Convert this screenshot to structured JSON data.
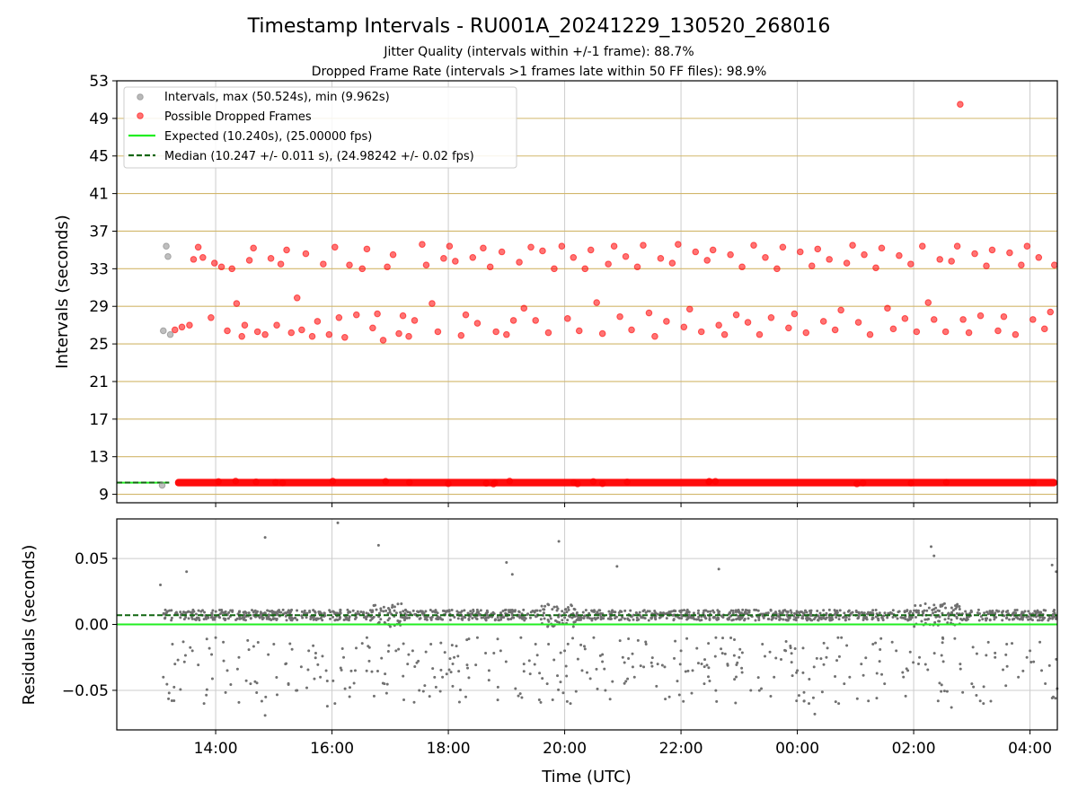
{
  "title": "Timestamp Intervals - RU001A_20241229_130520_268016",
  "subtitle_lines": [
    "Jitter Quality (intervals within +/-1 frame): 88.7%",
    "Dropped Frame Rate (intervals >1 frames late within 50 FF files): 98.9%"
  ],
  "colors": {
    "intervals": "#808080",
    "dropped": "#ff0000",
    "expected": "#22ee22",
    "median": "#116611",
    "hgrid": "#d2b76b",
    "vgrid": "#cccccc",
    "residuals": "#707070"
  },
  "legend": {
    "placement": "upper-left",
    "entries": [
      "Intervals, max (50.524s), min (9.962s)",
      "Possible Dropped Frames",
      "Expected (10.240s), (25.00000 fps)",
      "Median (10.247 +/- 0.011 s), (24.98242 +/- 0.02 fps)"
    ]
  },
  "chart_data": [
    {
      "type": "scatter",
      "name": "intervals",
      "xlabel": "",
      "ylabel": "Intervals (seconds)",
      "x_unit": "hours since 00:00 UTC on first day (ticks wrap past 24:00)",
      "xlim": [
        12.3,
        28.47
      ],
      "ylim": [
        8.1,
        53
      ],
      "yticks": [
        "9",
        "13",
        "17",
        "21",
        "25",
        "29",
        "33",
        "37",
        "41",
        "45",
        "49",
        "53"
      ],
      "xticks": [
        "14:00",
        "16:00",
        "18:00",
        "20:00",
        "22:00",
        "00:00",
        "02:00",
        "04:00"
      ],
      "grid": "horizontal gold + vertical gray",
      "series": [
        {
          "name": "Intervals, max (50.524s), min (9.962s)",
          "points": [
            [
              13.1,
              26.4
            ],
            [
              13.15,
              35.4
            ],
            [
              13.18,
              34.3
            ],
            [
              13.22,
              26.0
            ],
            [
              13.08,
              9.96
            ]
          ]
        },
        {
          "name": "Possible Dropped Frames",
          "band_value": 10.24,
          "band_range": [
            13.3,
            28.47
          ],
          "points": [
            [
              13.3,
              26.5
            ],
            [
              13.42,
              26.8
            ],
            [
              13.55,
              27.0
            ],
            [
              13.62,
              34.0
            ],
            [
              13.7,
              35.3
            ],
            [
              13.78,
              34.2
            ],
            [
              13.92,
              27.8
            ],
            [
              13.98,
              33.6
            ],
            [
              14.1,
              33.2
            ],
            [
              14.2,
              26.4
            ],
            [
              14.28,
              33.0
            ],
            [
              14.36,
              29.3
            ],
            [
              14.45,
              25.8
            ],
            [
              14.5,
              27.0
            ],
            [
              14.58,
              33.9
            ],
            [
              14.65,
              35.2
            ],
            [
              14.72,
              26.3
            ],
            [
              14.85,
              26.0
            ],
            [
              14.95,
              34.1
            ],
            [
              15.05,
              27.0
            ],
            [
              15.12,
              33.5
            ],
            [
              15.22,
              35.0
            ],
            [
              15.3,
              26.2
            ],
            [
              15.4,
              29.9
            ],
            [
              15.48,
              26.5
            ],
            [
              15.55,
              34.6
            ],
            [
              15.66,
              25.8
            ],
            [
              15.75,
              27.4
            ],
            [
              15.85,
              33.5
            ],
            [
              15.95,
              26.0
            ],
            [
              16.05,
              35.3
            ],
            [
              16.12,
              27.8
            ],
            [
              16.22,
              25.7
            ],
            [
              16.3,
              33.4
            ],
            [
              16.42,
              28.1
            ],
            [
              16.52,
              33.0
            ],
            [
              16.6,
              35.1
            ],
            [
              16.7,
              26.7
            ],
            [
              16.78,
              28.2
            ],
            [
              16.88,
              25.4
            ],
            [
              16.95,
              33.2
            ],
            [
              17.05,
              34.5
            ],
            [
              17.15,
              26.1
            ],
            [
              17.22,
              28.0
            ],
            [
              17.32,
              25.8
            ],
            [
              17.42,
              27.5
            ],
            [
              17.55,
              35.6
            ],
            [
              17.62,
              33.4
            ],
            [
              17.72,
              29.3
            ],
            [
              17.82,
              26.3
            ],
            [
              17.92,
              34.1
            ],
            [
              18.02,
              35.4
            ],
            [
              18.12,
              33.8
            ],
            [
              18.22,
              25.9
            ],
            [
              18.3,
              28.1
            ],
            [
              18.42,
              34.2
            ],
            [
              18.5,
              27.2
            ],
            [
              18.6,
              35.2
            ],
            [
              18.72,
              33.2
            ],
            [
              18.82,
              26.3
            ],
            [
              18.92,
              34.8
            ],
            [
              19.0,
              26.0
            ],
            [
              19.12,
              27.5
            ],
            [
              19.22,
              33.7
            ],
            [
              19.3,
              28.8
            ],
            [
              19.42,
              35.3
            ],
            [
              19.5,
              27.5
            ],
            [
              19.62,
              34.9
            ],
            [
              19.72,
              26.2
            ],
            [
              19.82,
              33.0
            ],
            [
              19.95,
              35.4
            ],
            [
              20.05,
              27.7
            ],
            [
              20.15,
              34.2
            ],
            [
              20.25,
              26.4
            ],
            [
              20.35,
              33.0
            ],
            [
              20.45,
              35.0
            ],
            [
              20.55,
              29.4
            ],
            [
              20.65,
              26.1
            ],
            [
              20.75,
              33.5
            ],
            [
              20.85,
              35.4
            ],
            [
              20.95,
              27.9
            ],
            [
              21.05,
              34.3
            ],
            [
              21.15,
              26.5
            ],
            [
              21.25,
              33.2
            ],
            [
              21.35,
              35.5
            ],
            [
              21.45,
              28.3
            ],
            [
              21.55,
              25.8
            ],
            [
              21.65,
              34.1
            ],
            [
              21.75,
              27.4
            ],
            [
              21.85,
              33.6
            ],
            [
              21.95,
              35.6
            ],
            [
              22.05,
              26.8
            ],
            [
              22.15,
              28.7
            ],
            [
              22.25,
              34.8
            ],
            [
              22.35,
              26.3
            ],
            [
              22.45,
              33.9
            ],
            [
              22.55,
              35.0
            ],
            [
              22.65,
              27.0
            ],
            [
              22.75,
              26.0
            ],
            [
              22.85,
              34.5
            ],
            [
              22.95,
              28.1
            ],
            [
              23.05,
              33.2
            ],
            [
              23.15,
              27.3
            ],
            [
              23.25,
              35.5
            ],
            [
              23.35,
              26.0
            ],
            [
              23.45,
              34.2
            ],
            [
              23.55,
              27.8
            ],
            [
              23.65,
              33.0
            ],
            [
              23.75,
              35.3
            ],
            [
              23.85,
              26.7
            ],
            [
              23.95,
              28.2
            ],
            [
              24.05,
              34.8
            ],
            [
              24.15,
              26.2
            ],
            [
              24.25,
              33.3
            ],
            [
              24.35,
              35.1
            ],
            [
              24.45,
              27.4
            ],
            [
              24.55,
              34.0
            ],
            [
              24.65,
              26.5
            ],
            [
              24.75,
              28.6
            ],
            [
              24.85,
              33.6
            ],
            [
              24.95,
              35.5
            ],
            [
              25.05,
              27.3
            ],
            [
              25.15,
              34.5
            ],
            [
              25.25,
              26.0
            ],
            [
              25.35,
              33.1
            ],
            [
              25.45,
              35.2
            ],
            [
              25.55,
              28.8
            ],
            [
              25.65,
              26.6
            ],
            [
              25.75,
              34.4
            ],
            [
              25.85,
              27.7
            ],
            [
              25.95,
              33.5
            ],
            [
              26.05,
              26.3
            ],
            [
              26.15,
              35.4
            ],
            [
              26.25,
              29.4
            ],
            [
              26.35,
              27.6
            ],
            [
              26.45,
              34.0
            ],
            [
              26.55,
              26.3
            ],
            [
              26.65,
              33.8
            ],
            [
              26.75,
              35.4
            ],
            [
              26.8,
              50.5
            ],
            [
              26.85,
              27.6
            ],
            [
              26.95,
              26.2
            ],
            [
              27.05,
              34.6
            ],
            [
              27.15,
              28.0
            ],
            [
              27.25,
              33.3
            ],
            [
              27.35,
              35.0
            ],
            [
              27.45,
              26.4
            ],
            [
              27.55,
              27.9
            ],
            [
              27.65,
              34.7
            ],
            [
              27.75,
              26.0
            ],
            [
              27.85,
              33.4
            ],
            [
              27.95,
              35.4
            ],
            [
              28.05,
              27.6
            ],
            [
              28.15,
              34.2
            ],
            [
              28.25,
              26.6
            ],
            [
              28.35,
              28.4
            ],
            [
              28.42,
              33.4
            ]
          ]
        },
        {
          "name": "Expected (10.240s), (25.00000 fps)",
          "values": [
            10.24
          ]
        },
        {
          "name": "Median (10.247 +/- 0.011 s), (24.98242 +/- 0.02 fps)",
          "values": [
            10.247
          ]
        }
      ]
    },
    {
      "type": "scatter",
      "name": "residuals",
      "xlabel": "Time (UTC)",
      "ylabel": "Residuals (seconds)",
      "x_unit": "hours since 00:00 UTC on first day (ticks wrap past 24:00)",
      "xlim": [
        12.3,
        28.47
      ],
      "ylim": [
        -0.08,
        0.08
      ],
      "yticks": [
        "0.05",
        "0.00",
        "−0.05"
      ],
      "xticks": [
        "14:00",
        "16:00",
        "18:00",
        "20:00",
        "22:00",
        "00:00",
        "02:00",
        "04:00"
      ],
      "grid": "both",
      "reference_lines": {
        "expected": 0.0,
        "median": 0.007
      },
      "band": {
        "center": 0.007,
        "spread": 0.004,
        "x_range": [
          13.1,
          28.47
        ]
      },
      "points": [
        [
          13.05,
          0.03
        ],
        [
          13.1,
          -0.04
        ],
        [
          13.2,
          -0.052
        ],
        [
          13.3,
          -0.03
        ],
        [
          13.5,
          0.04
        ],
        [
          13.6,
          -0.02
        ],
        [
          13.8,
          -0.06
        ],
        [
          14.0,
          -0.01
        ],
        [
          14.2,
          -0.035
        ],
        [
          14.4,
          -0.025
        ],
        [
          14.6,
          -0.045
        ],
        [
          14.85,
          0.066
        ],
        [
          14.85,
          -0.069
        ],
        [
          15.0,
          -0.015
        ],
        [
          15.2,
          -0.03
        ],
        [
          15.4,
          -0.05
        ],
        [
          15.6,
          -0.02
        ],
        [
          15.8,
          -0.04
        ],
        [
          15.92,
          -0.062
        ],
        [
          16.05,
          -0.06
        ],
        [
          16.1,
          0.077
        ],
        [
          16.2,
          -0.025
        ],
        [
          16.4,
          -0.035
        ],
        [
          16.6,
          -0.01
        ],
        [
          16.8,
          0.06
        ],
        [
          16.9,
          -0.045
        ],
        [
          17.1,
          -0.02
        ],
        [
          17.3,
          -0.03
        ],
        [
          17.5,
          -0.05
        ],
        [
          17.7,
          -0.015
        ],
        [
          17.9,
          -0.04
        ],
        [
          18.1,
          -0.025
        ],
        [
          18.3,
          -0.055
        ],
        [
          18.5,
          -0.01
        ],
        [
          18.7,
          -0.035
        ],
        [
          18.9,
          -0.02
        ],
        [
          19.0,
          0.047
        ],
        [
          19.1,
          0.038
        ],
        [
          19.3,
          -0.03
        ],
        [
          19.5,
          -0.015
        ],
        [
          19.7,
          -0.045
        ],
        [
          19.9,
          0.063
        ],
        [
          20.0,
          -0.02
        ],
        [
          20.1,
          -0.06
        ],
        [
          20.3,
          -0.035
        ],
        [
          20.5,
          -0.01
        ],
        [
          20.7,
          -0.05
        ],
        [
          20.9,
          0.044
        ],
        [
          21.0,
          -0.025
        ],
        [
          21.2,
          -0.04
        ],
        [
          21.4,
          -0.015
        ],
        [
          21.6,
          -0.03
        ],
        [
          21.8,
          -0.055
        ],
        [
          22.0,
          -0.02
        ],
        [
          22.2,
          -0.035
        ],
        [
          22.4,
          -0.045
        ],
        [
          22.65,
          0.042
        ],
        [
          22.6,
          -0.01
        ],
        [
          22.8,
          -0.03
        ],
        [
          23.0,
          -0.025
        ],
        [
          23.2,
          -0.05
        ],
        [
          23.4,
          -0.015
        ],
        [
          23.6,
          -0.04
        ],
        [
          23.8,
          -0.02
        ],
        [
          24.0,
          -0.035
        ],
        [
          24.2,
          -0.06
        ],
        [
          24.3,
          -0.068
        ],
        [
          24.5,
          -0.025
        ],
        [
          24.7,
          -0.01
        ],
        [
          24.9,
          -0.04
        ],
        [
          25.1,
          -0.03
        ],
        [
          25.3,
          -0.015
        ],
        [
          25.5,
          -0.045
        ],
        [
          25.7,
          -0.02
        ],
        [
          25.9,
          -0.035
        ],
        [
          26.1,
          -0.025
        ],
        [
          26.3,
          0.059
        ],
        [
          26.35,
          0.052
        ],
        [
          26.5,
          -0.01
        ],
        [
          26.65,
          -0.063
        ],
        [
          26.8,
          -0.03
        ],
        [
          27.0,
          -0.045
        ],
        [
          27.2,
          -0.06
        ],
        [
          27.4,
          -0.025
        ],
        [
          27.6,
          -0.015
        ],
        [
          27.8,
          -0.04
        ],
        [
          28.0,
          -0.02
        ],
        [
          28.2,
          -0.035
        ],
        [
          28.38,
          0.045
        ],
        [
          28.4,
          -0.055
        ],
        [
          28.45,
          0.04
        ]
      ]
    }
  ]
}
